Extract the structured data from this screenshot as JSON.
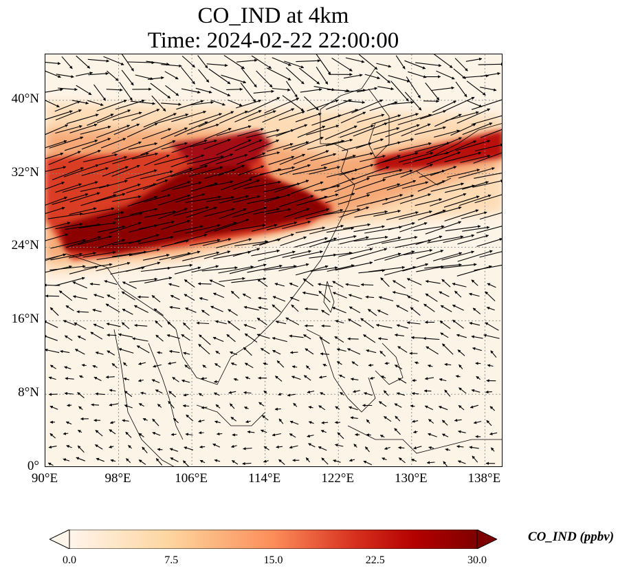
{
  "title": {
    "line1": "CO_IND at 4km",
    "line2": "Time: 2024-02-22 22:00:00"
  },
  "map": {
    "extent": {
      "lon_min": 90,
      "lon_max": 140,
      "lat_min": 0,
      "lat_max": 45
    },
    "lat_ticks": [
      {
        "value": 40,
        "label": "40°N"
      },
      {
        "value": 32,
        "label": "32°N"
      },
      {
        "value": 24,
        "label": "24°N"
      },
      {
        "value": 16,
        "label": "16°N"
      },
      {
        "value": 8,
        "label": "8°N"
      },
      {
        "value": 0,
        "label": "0°"
      }
    ],
    "lon_ticks": [
      {
        "value": 90,
        "label": "90°E"
      },
      {
        "value": 98,
        "label": "98°E"
      },
      {
        "value": 106,
        "label": "106°E"
      },
      {
        "value": 114,
        "label": "114°E"
      },
      {
        "value": 122,
        "label": "122°E"
      },
      {
        "value": 130,
        "label": "130°E"
      },
      {
        "value": 138,
        "label": "138°E"
      }
    ],
    "gridlines": true,
    "background_color": "#fdf4e8",
    "high_color": "#8b0000"
  },
  "colorbar": {
    "label": "CO_IND (ppbv)",
    "min": 0.0,
    "max": 30.0,
    "extend": "both",
    "colors": [
      "#fff5eb",
      "#fdd49e",
      "#fc8d59",
      "#d7301f",
      "#b30000",
      "#7f0000"
    ],
    "ticks": [
      {
        "value": 0.0,
        "label": "0.0"
      },
      {
        "value": 7.5,
        "label": "7.5"
      },
      {
        "value": 15.0,
        "label": "15.0"
      },
      {
        "value": 22.5,
        "label": "22.5"
      },
      {
        "value": 30.0,
        "label": "30.0"
      }
    ]
  }
}
